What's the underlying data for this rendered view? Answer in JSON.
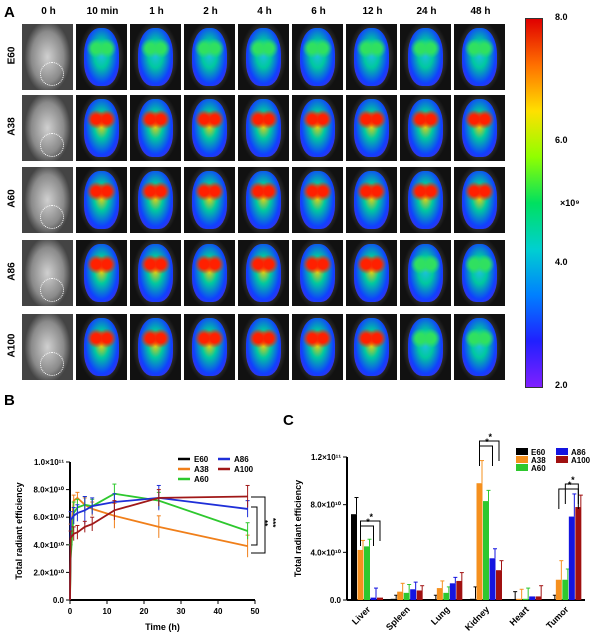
{
  "panelA": {
    "label": "A",
    "columns": [
      "0 h",
      "10 min",
      "1 h",
      "2 h",
      "4 h",
      "6 h",
      "12 h",
      "24 h",
      "48 h"
    ],
    "rows": [
      "E60",
      "A38",
      "A60",
      "A86",
      "A100"
    ],
    "colorbar": {
      "ticks": [
        "8.0",
        "6.0",
        "4.0",
        "2.0"
      ],
      "unit": "×10⁹",
      "range": [
        2.0,
        8.0
      ],
      "colormap": "rainbow"
    }
  },
  "panelB": {
    "label": "B"
  },
  "panelC": {
    "label": "C"
  },
  "chart_data": [
    {
      "type": "line",
      "panel": "B",
      "xlabel": "Time (h)",
      "ylabel": "Total radiant efficiency",
      "xlim": [
        0,
        50
      ],
      "ylim": [
        0,
        100000000000.0
      ],
      "xticks": [
        "0",
        "10",
        "20",
        "30",
        "40",
        "50"
      ],
      "yticks": [
        "0.0",
        "2.0×10¹⁰",
        "4.0×10¹⁰",
        "6.0×10¹⁰",
        "8.0×10¹⁰",
        "1.0×10¹¹"
      ],
      "x": [
        0,
        0.17,
        1,
        2,
        4,
        6,
        12,
        24,
        48
      ],
      "legend": "top-right",
      "series": [
        {
          "name": "E60",
          "color": "#000000",
          "values": [
            0,
            0,
            0,
            0,
            0,
            0,
            0,
            0,
            0
          ],
          "err": [
            0,
            0,
            0,
            0,
            0,
            0,
            0,
            0,
            0
          ]
        },
        {
          "name": "A38",
          "color": "#f07f1a",
          "values": [
            0,
            45000000000.0,
            72000000000.0,
            74000000000.0,
            69000000000.0,
            66000000000.0,
            61000000000.0,
            53000000000.0,
            39000000000.0
          ],
          "err": [
            0,
            10000000000.0,
            4000000000.0,
            4000000000.0,
            5000000000.0,
            5000000000.0,
            9000000000.0,
            8000000000.0,
            8000000000.0
          ]
        },
        {
          "name": "A60",
          "color": "#2ec82e",
          "values": [
            0,
            30000000000.0,
            63000000000.0,
            67000000000.0,
            69000000000.0,
            68000000000.0,
            77000000000.0,
            72000000000.0,
            50000000000.0
          ],
          "err": [
            0,
            10000000000.0,
            8000000000.0,
            6000000000.0,
            6000000000.0,
            5000000000.0,
            7000000000.0,
            6000000000.0,
            6000000000.0
          ]
        },
        {
          "name": "A86",
          "color": "#1f2fd8",
          "values": [
            0,
            58000000000.0,
            61000000000.0,
            63000000000.0,
            65000000000.0,
            68000000000.0,
            71000000000.0,
            74000000000.0,
            66000000000.0
          ],
          "err": [
            0,
            6000000000.0,
            6000000000.0,
            6000000000.0,
            10000000000.0,
            6000000000.0,
            6000000000.0,
            9000000000.0,
            6000000000.0
          ]
        },
        {
          "name": "A100",
          "color": "#a01818",
          "values": [
            0,
            45000000000.0,
            48000000000.0,
            49000000000.0,
            53000000000.0,
            55000000000.0,
            65000000000.0,
            74000000000.0,
            75000000000.0
          ],
          "err": [
            0,
            5000000000.0,
            5000000000.0,
            5000000000.0,
            4000000000.0,
            5000000000.0,
            7000000000.0,
            6000000000.0,
            8000000000.0
          ]
        }
      ],
      "annotations": [
        "**",
        "***"
      ]
    },
    {
      "type": "bar",
      "panel": "C",
      "ylabel": "Total radiant efficiency",
      "ylim": [
        0,
        120000000000.0
      ],
      "yticks": [
        "0.0",
        "4.0×10¹⁰",
        "8.0×10¹⁰",
        "1.2×10¹¹"
      ],
      "categories": [
        "Liver",
        "Spleen",
        "Lung",
        "Kidney",
        "Heart",
        "Tumor"
      ],
      "legend": "top-right",
      "series": [
        {
          "name": "E60",
          "color": "#000000",
          "values": [
            72000000000.0,
            1000000000.0,
            0,
            1000000000.0,
            0,
            0
          ],
          "err": [
            14000000000.0,
            3000000000.0,
            4000000000.0,
            10000000000.0,
            7000000000.0,
            4000000000.0
          ]
        },
        {
          "name": "A38",
          "color": "#f5901e",
          "values": [
            42000000000.0,
            7000000000.0,
            10000000000.0,
            98000000000.0,
            1000000000.0,
            17000000000.0
          ],
          "err": [
            8000000000.0,
            7000000000.0,
            6000000000.0,
            19000000000.0,
            8000000000.0,
            16000000000.0
          ]
        },
        {
          "name": "A60",
          "color": "#2ec82e",
          "values": [
            45000000000.0,
            6000000000.0,
            6000000000.0,
            83000000000.0,
            1000000000.0,
            17000000000.0
          ],
          "err": [
            6000000000.0,
            7000000000.0,
            5000000000.0,
            9000000000.0,
            9000000000.0,
            9000000000.0
          ]
        },
        {
          "name": "A86",
          "color": "#1414e0",
          "values": [
            2000000000.0,
            9000000000.0,
            14000000000.0,
            35000000000.0,
            3000000000.0,
            70000000000.0
          ],
          "err": [
            8000000000.0,
            6000000000.0,
            5000000000.0,
            8000000000.0,
            0,
            19000000000.0
          ]
        },
        {
          "name": "A100",
          "color": "#a01010",
          "values": [
            2000000000.0,
            8000000000.0,
            16000000000.0,
            25000000000.0,
            3000000000.0,
            78000000000.0
          ],
          "err": [
            0,
            4000000000.0,
            7000000000.0,
            8000000000.0,
            9000000000.0,
            10000000000.0
          ]
        }
      ],
      "annotations": [
        "*",
        "*",
        "*",
        "*",
        "*",
        "*"
      ]
    }
  ]
}
